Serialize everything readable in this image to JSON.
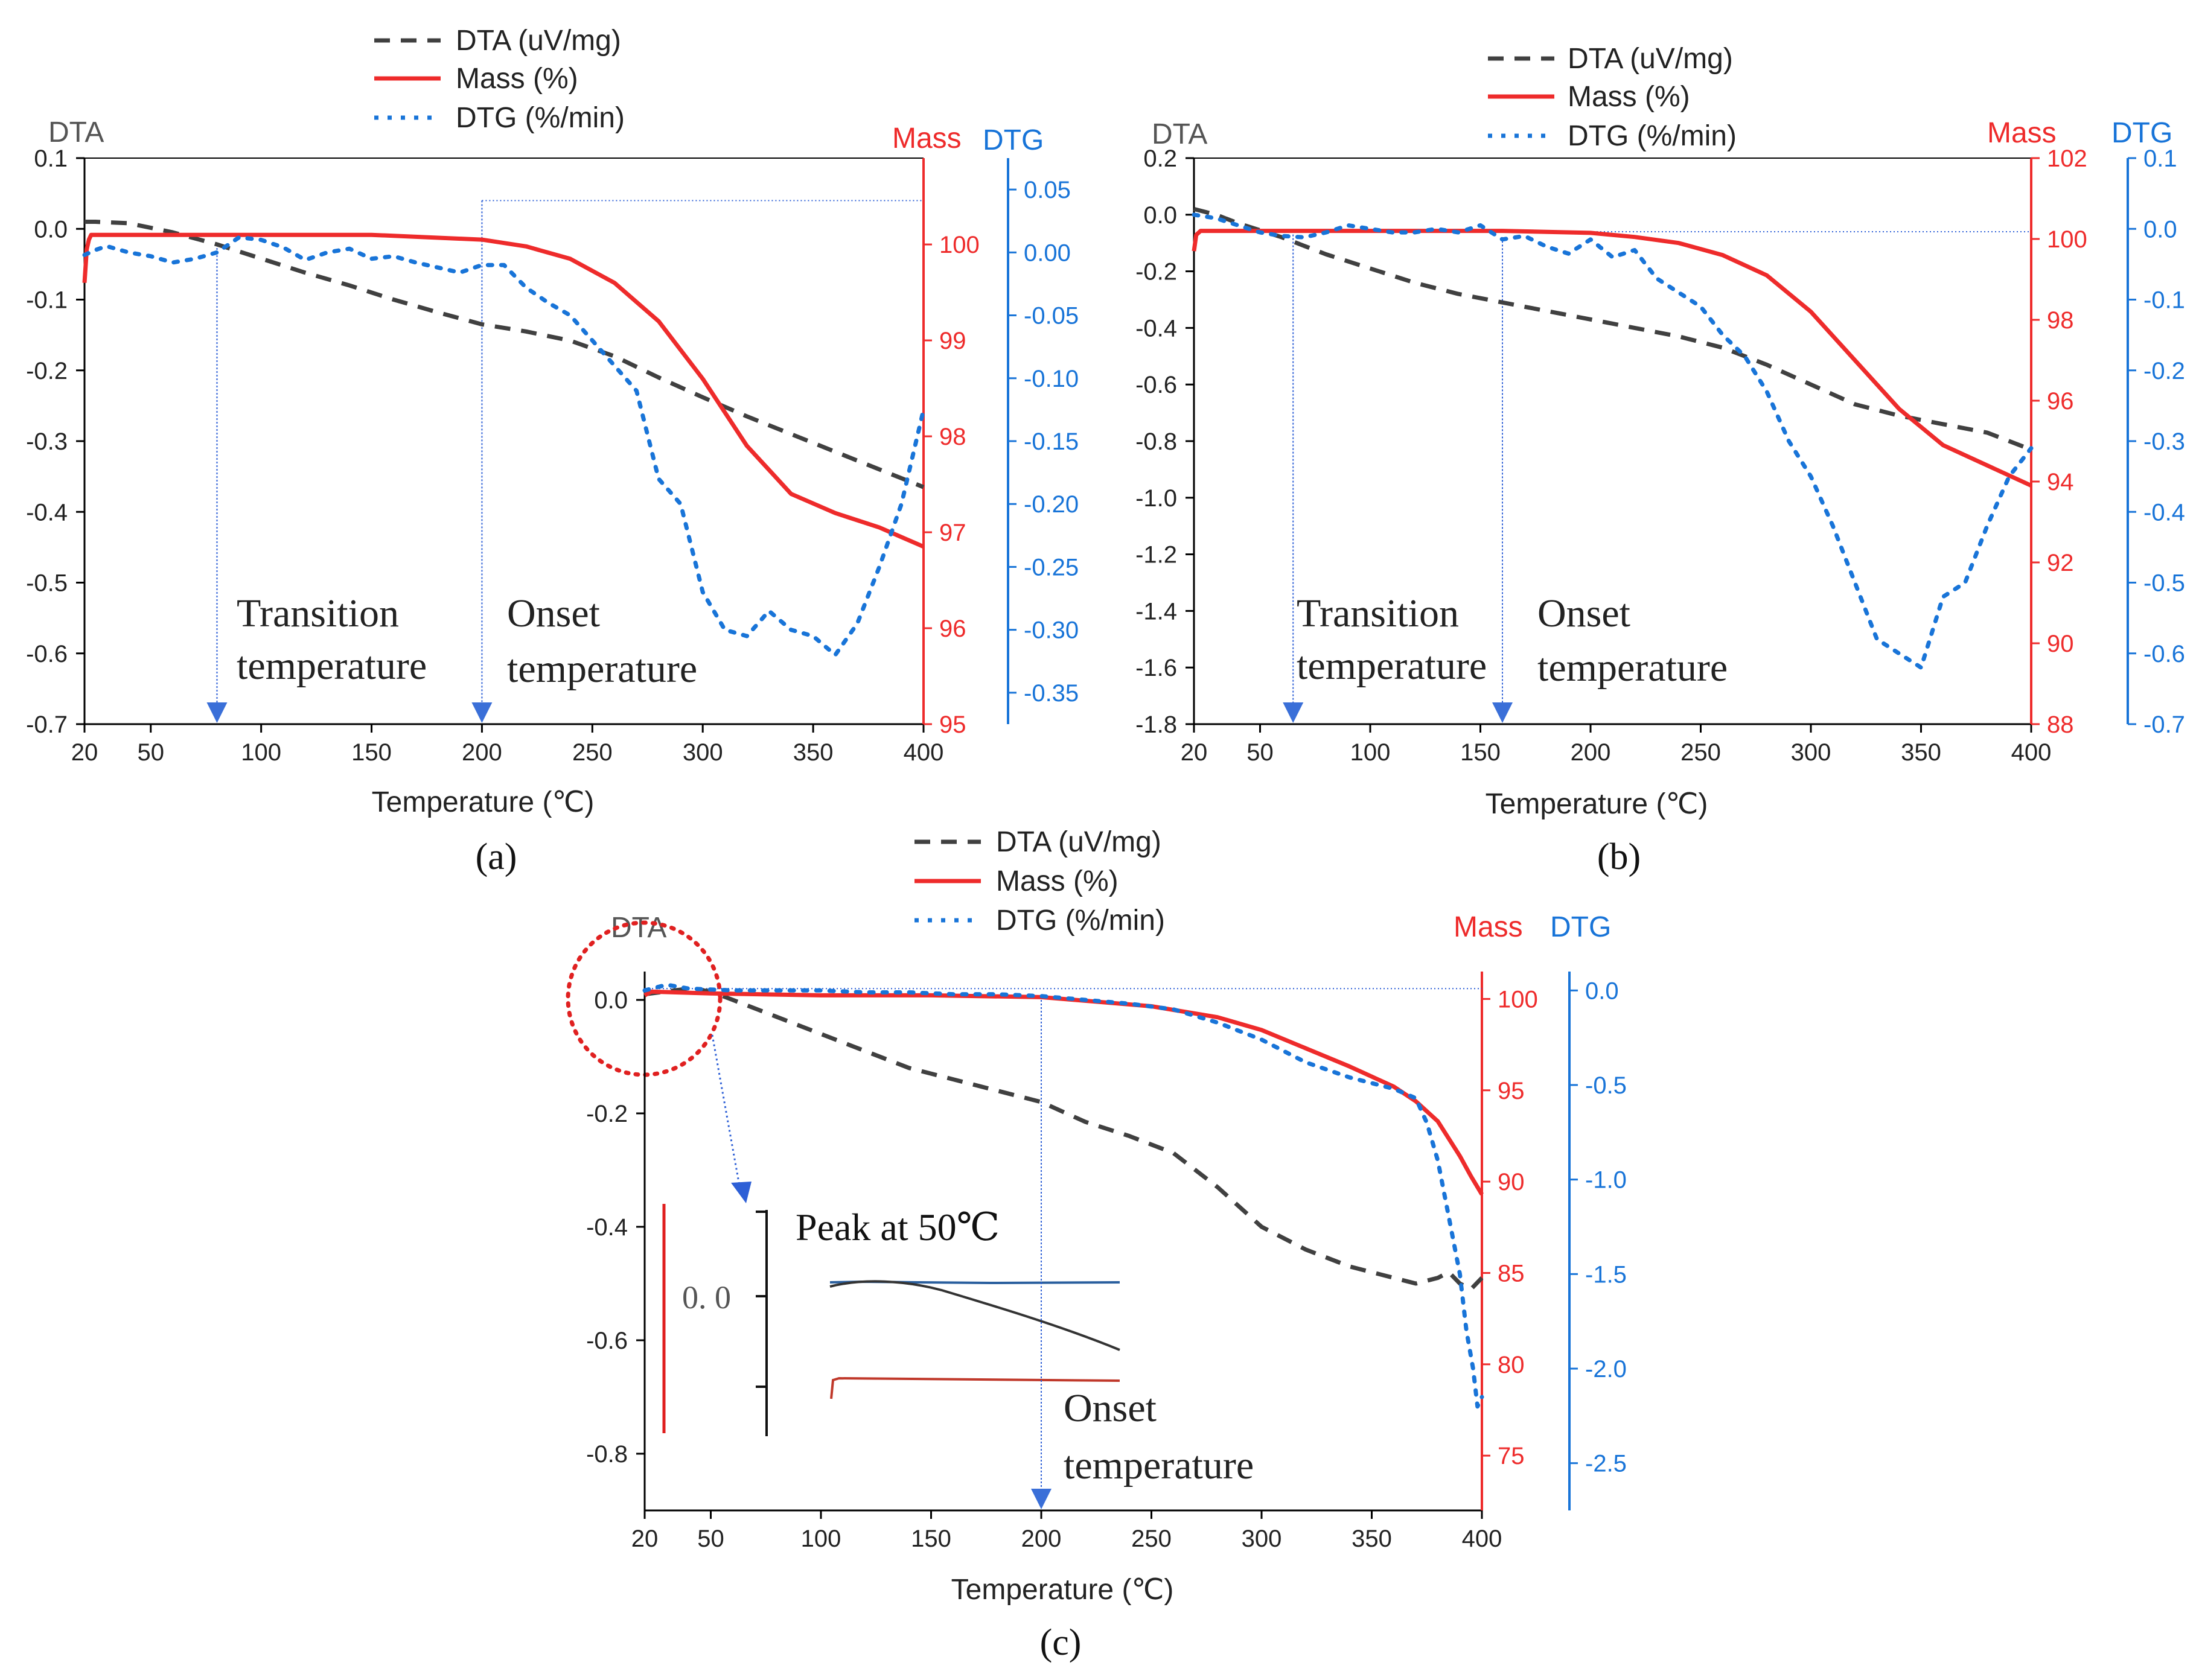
{
  "figure": {
    "colors": {
      "dta": "#404040",
      "mass": "#ee2b2b",
      "dtg": "#1874d8",
      "axis": "#000000",
      "ref": "#2d5fd6"
    }
  },
  "chart_data": [
    {
      "id": "a",
      "type": "line",
      "caption": "(a)",
      "xlabel": "Temperature (℃)",
      "xlim": [
        20,
        400
      ],
      "xticks": [
        20,
        50,
        100,
        150,
        200,
        250,
        300,
        350,
        400
      ],
      "legend": [
        "DTA (uV/mg)",
        "Mass (%)",
        "DTG (%/min)"
      ],
      "axes": {
        "dta": {
          "label": "DTA",
          "lim": [
            -0.7,
            0.1
          ],
          "ticks": [
            0.1,
            0.0,
            -0.1,
            -0.2,
            -0.3,
            -0.4,
            -0.5,
            -0.6,
            -0.7
          ],
          "decimals": 1
        },
        "mass": {
          "label": "Mass",
          "lim": [
            95,
            100.9
          ],
          "ticks": [
            100,
            99,
            98,
            97,
            96,
            95
          ],
          "decimals": 0
        },
        "dtg": {
          "label": "DTG",
          "lim": [
            -0.375,
            0.075
          ],
          "ticks": [
            0.05,
            0.0,
            -0.05,
            -0.1,
            -0.15,
            -0.2,
            -0.25,
            -0.3,
            -0.35
          ],
          "decimals": 2
        }
      },
      "series": [
        {
          "name": "DTA (uV/mg)",
          "axis": "dta",
          "x": [
            20,
            25,
            40,
            60,
            80,
            100,
            120,
            140,
            160,
            180,
            200,
            220,
            240,
            260,
            280,
            300,
            320,
            340,
            360,
            380,
            400
          ],
          "y": [
            0.01,
            0.01,
            0.008,
            -0.005,
            -0.022,
            -0.042,
            -0.062,
            -0.08,
            -0.1,
            -0.118,
            -0.135,
            -0.145,
            -0.158,
            -0.18,
            -0.21,
            -0.238,
            -0.265,
            -0.29,
            -0.315,
            -0.34,
            -0.365
          ]
        },
        {
          "name": "Mass (%)",
          "axis": "mass",
          "x": [
            20,
            21,
            22,
            23,
            50,
            100,
            150,
            200,
            220,
            240,
            260,
            280,
            300,
            320,
            340,
            360,
            380,
            390,
            400
          ],
          "y": [
            99.6,
            99.95,
            100.05,
            100.1,
            100.1,
            100.1,
            100.1,
            100.05,
            99.98,
            99.85,
            99.6,
            99.2,
            98.6,
            97.9,
            97.4,
            97.2,
            97.05,
            96.95,
            96.85
          ]
        },
        {
          "name": "DTG (%/min)",
          "axis": "dtg",
          "x": [
            20,
            25,
            30,
            40,
            50,
            60,
            70,
            80,
            90,
            100,
            110,
            120,
            130,
            140,
            150,
            160,
            170,
            180,
            190,
            200,
            210,
            220,
            230,
            240,
            250,
            260,
            270,
            280,
            290,
            300,
            310,
            320,
            330,
            340,
            350,
            360,
            370,
            380,
            390,
            400
          ],
          "y": [
            -0.002,
            0.002,
            0.005,
            0.0,
            -0.003,
            -0.008,
            -0.005,
            0.0,
            0.012,
            0.01,
            0.004,
            -0.006,
            0.0,
            0.003,
            -0.005,
            -0.003,
            -0.008,
            -0.012,
            -0.016,
            -0.01,
            -0.01,
            -0.028,
            -0.04,
            -0.05,
            -0.07,
            -0.09,
            -0.11,
            -0.18,
            -0.2,
            -0.27,
            -0.3,
            -0.305,
            -0.285,
            -0.3,
            -0.305,
            -0.32,
            -0.295,
            -0.25,
            -0.2,
            -0.125
          ]
        }
      ],
      "refs": [
        {
          "x": 80,
          "axis": "dta",
          "from": -0.022,
          "label": [
            "Transition",
            "temperature"
          ]
        },
        {
          "x": 200,
          "axis": "dta",
          "from": 0.04,
          "label": [
            "Onset",
            "temperature"
          ]
        }
      ],
      "hline": {
        "axis": "dta",
        "value": 0.04,
        "from": 200,
        "to": 400
      }
    },
    {
      "id": "b",
      "type": "line",
      "caption": "(b)",
      "xlabel": "Temperature (℃)",
      "xlim": [
        20,
        400
      ],
      "xticks": [
        20,
        50,
        100,
        150,
        200,
        250,
        300,
        350,
        400
      ],
      "legend": [
        "DTA (uV/mg)",
        "Mass (%)",
        "DTG (%/min)"
      ],
      "axes": {
        "dta": {
          "label": "DTA",
          "lim": [
            -1.8,
            0.2
          ],
          "ticks": [
            0.2,
            0.0,
            -0.2,
            -0.4,
            -0.6,
            -0.8,
            -1.0,
            -1.2,
            -1.4,
            -1.6,
            -1.8
          ],
          "decimals": 1
        },
        "mass": {
          "label": "Mass",
          "lim": [
            88,
            102
          ],
          "ticks": [
            102,
            100,
            98,
            96,
            94,
            92,
            90,
            88
          ],
          "decimals": 0
        },
        "dtg": {
          "label": "DTG",
          "lim": [
            -0.7,
            0.1
          ],
          "ticks": [
            0.1,
            0.0,
            -0.1,
            -0.2,
            -0.3,
            -0.4,
            -0.5,
            -0.6,
            -0.7
          ],
          "decimals": 1
        }
      },
      "series": [
        {
          "name": "DTA (uV/mg)",
          "axis": "dta",
          "x": [
            20,
            30,
            40,
            60,
            80,
            100,
            120,
            140,
            160,
            180,
            200,
            220,
            240,
            260,
            280,
            300,
            320,
            340,
            360,
            380,
            400
          ],
          "y": [
            0.02,
            0.0,
            -0.03,
            -0.08,
            -0.14,
            -0.19,
            -0.24,
            -0.28,
            -0.31,
            -0.34,
            -0.37,
            -0.4,
            -0.43,
            -0.47,
            -0.53,
            -0.6,
            -0.67,
            -0.71,
            -0.74,
            -0.77,
            -0.83
          ]
        },
        {
          "name": "Mass (%)",
          "axis": "mass",
          "x": [
            20,
            21,
            23,
            40,
            80,
            120,
            160,
            200,
            220,
            240,
            260,
            280,
            300,
            320,
            340,
            360,
            380,
            400
          ],
          "y": [
            99.7,
            100.1,
            100.2,
            100.2,
            100.2,
            100.2,
            100.2,
            100.15,
            100.05,
            99.9,
            99.6,
            99.1,
            98.2,
            97.0,
            95.8,
            94.9,
            94.4,
            93.9
          ]
        },
        {
          "name": "DTG (%/min)",
          "axis": "dtg",
          "x": [
            20,
            30,
            40,
            50,
            60,
            70,
            80,
            90,
            100,
            110,
            120,
            130,
            140,
            150,
            160,
            170,
            180,
            190,
            200,
            210,
            220,
            230,
            240,
            250,
            260,
            270,
            280,
            290,
            300,
            310,
            320,
            330,
            340,
            350,
            360,
            370,
            380,
            390,
            400
          ],
          "y": [
            0.02,
            0.015,
            0.005,
            -0.005,
            -0.01,
            -0.012,
            -0.005,
            0.005,
            0.0,
            -0.005,
            -0.005,
            0.0,
            -0.005,
            0.005,
            -0.015,
            -0.01,
            -0.025,
            -0.035,
            -0.015,
            -0.04,
            -0.03,
            -0.07,
            -0.09,
            -0.11,
            -0.15,
            -0.18,
            -0.23,
            -0.3,
            -0.35,
            -0.42,
            -0.5,
            -0.58,
            -0.6,
            -0.62,
            -0.52,
            -0.5,
            -0.42,
            -0.35,
            -0.31
          ]
        }
      ],
      "refs": [
        {
          "x": 65,
          "axis": "dta",
          "from": -0.07,
          "label": [
            "Transition",
            "temperature"
          ]
        },
        {
          "x": 160,
          "axis": "dta",
          "from": -0.08,
          "label": [
            "Onset",
            "temperature"
          ]
        }
      ],
      "hline": {
        "axis": "dta",
        "value": -0.06,
        "from": 160,
        "to": 400
      }
    },
    {
      "id": "c",
      "type": "line",
      "caption": "(c)",
      "xlabel": "Temperature (℃)",
      "xlim": [
        20,
        400
      ],
      "xticks": [
        20,
        50,
        100,
        150,
        200,
        250,
        300,
        350,
        400
      ],
      "legend": [
        "DTA (uV/mg)",
        "Mass (%)",
        "DTG (%/min)"
      ],
      "axes": {
        "dta": {
          "label": "DTA",
          "lim": [
            -0.9,
            0.05
          ],
          "ticks": [
            0.0,
            -0.2,
            -0.4,
            -0.6,
            -0.8
          ],
          "decimals": 1
        },
        "mass": {
          "label": "Mass",
          "lim": [
            72,
            101.5
          ],
          "ticks": [
            100,
            95,
            90,
            85,
            80,
            75
          ],
          "decimals": 0
        },
        "dtg": {
          "label": "DTG",
          "lim": [
            -2.75,
            0.1
          ],
          "ticks": [
            0.0,
            -0.5,
            -1.0,
            -1.5,
            -2.0,
            -2.5
          ],
          "decimals": 1
        }
      },
      "series": [
        {
          "name": "DTA (uV/mg)",
          "axis": "dta",
          "x": [
            20,
            30,
            40,
            50,
            60,
            80,
            100,
            120,
            140,
            160,
            180,
            200,
            220,
            240,
            260,
            280,
            300,
            320,
            340,
            360,
            370,
            380,
            385,
            390,
            395,
            400
          ],
          "y": [
            0.01,
            0.015,
            0.02,
            0.015,
            0.0,
            -0.03,
            -0.06,
            -0.09,
            -0.12,
            -0.14,
            -0.16,
            -0.18,
            -0.215,
            -0.24,
            -0.27,
            -0.33,
            -0.4,
            -0.44,
            -0.47,
            -0.49,
            -0.5,
            -0.49,
            -0.48,
            -0.5,
            -0.51,
            -0.49
          ]
        },
        {
          "name": "Mass (%)",
          "axis": "mass",
          "x": [
            20,
            23,
            50,
            100,
            150,
            200,
            250,
            280,
            300,
            320,
            340,
            360,
            370,
            380,
            390,
            395,
            400
          ],
          "y": [
            100.2,
            100.4,
            100.3,
            100.2,
            100.2,
            100.1,
            99.6,
            99.0,
            98.3,
            97.3,
            96.3,
            95.2,
            94.4,
            93.3,
            91.4,
            90.3,
            89.3
          ]
        },
        {
          "name": "DTG (%/min)",
          "axis": "dtg",
          "x": [
            20,
            30,
            40,
            60,
            80,
            100,
            120,
            140,
            160,
            180,
            200,
            220,
            240,
            260,
            280,
            300,
            320,
            340,
            360,
            370,
            375,
            380,
            385,
            390,
            393,
            396,
            398,
            400
          ],
          "y": [
            0.0,
            0.03,
            0.01,
            0.0,
            0.0,
            0.0,
            -0.01,
            -0.01,
            -0.02,
            -0.02,
            -0.03,
            -0.05,
            -0.07,
            -0.1,
            -0.17,
            -0.26,
            -0.38,
            -0.46,
            -0.52,
            -0.57,
            -0.7,
            -0.9,
            -1.2,
            -1.5,
            -1.8,
            -2.0,
            -2.2,
            -2.15
          ]
        }
      ],
      "refs": [
        {
          "x": 200,
          "axis": "dta",
          "from": 0.0,
          "label": [
            "Onset",
            "temperature"
          ]
        }
      ],
      "hline": {
        "axis": "dta",
        "value": 0.02,
        "from": 20,
        "to": 400
      },
      "inset": {
        "title": "Peak at 50℃",
        "tick_label": "0. 0"
      }
    }
  ]
}
